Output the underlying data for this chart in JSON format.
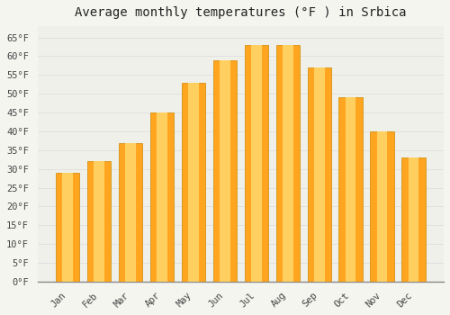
{
  "title": "Average monthly temperatures (°F ) in Srbica",
  "months": [
    "Jan",
    "Feb",
    "Mar",
    "Apr",
    "May",
    "Jun",
    "Jul",
    "Aug",
    "Sep",
    "Oct",
    "Nov",
    "Dec"
  ],
  "values": [
    29,
    32,
    37,
    45,
    53,
    59,
    63,
    63,
    57,
    49,
    40,
    33
  ],
  "bar_color_main": "#FFA520",
  "bar_color_light": "#FFD060",
  "bar_edge_color": "#CC8800",
  "ylim": [
    0,
    68
  ],
  "yticks": [
    0,
    5,
    10,
    15,
    20,
    25,
    30,
    35,
    40,
    45,
    50,
    55,
    60,
    65
  ],
  "background_color": "#F5F5F0",
  "plot_bg_color": "#F0F0EB",
  "grid_color": "#DDDDDD",
  "title_fontsize": 10,
  "tick_fontsize": 7.5,
  "bar_width": 0.75
}
